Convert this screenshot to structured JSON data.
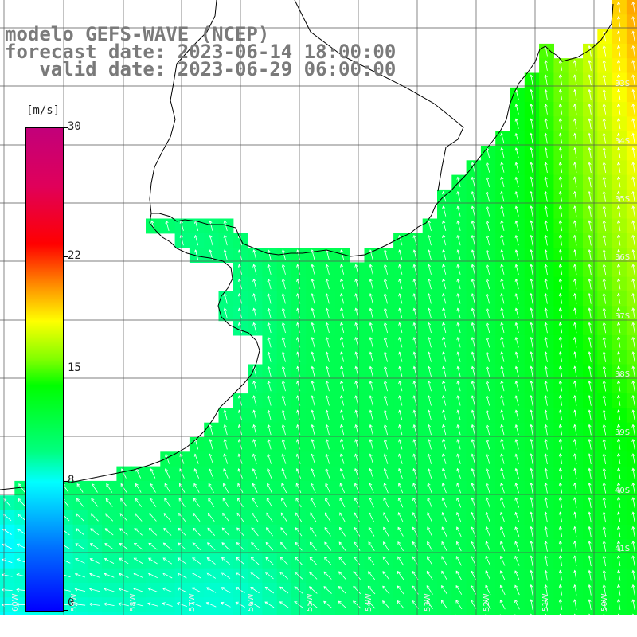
{
  "titles": {
    "model": "modelo GEFS-WAVE (NCEP)",
    "forecast": "forecast date: 2023-06-14 18:00:00",
    "valid": "   valid date: 2023-06-29 06:00:00"
  },
  "colorbar": {
    "units": "[m/s]",
    "ticks": [
      {
        "value": 30,
        "label": "30"
      },
      {
        "value": 22,
        "label": "22"
      },
      {
        "value": 15,
        "label": "15"
      },
      {
        "value": 8,
        "label": "8"
      },
      {
        "value": 0,
        "label": "0"
      }
    ],
    "range": [
      0,
      30
    ]
  },
  "grid": {
    "lat_labels": [
      "33S",
      "34S",
      "35S",
      "36S",
      "37S",
      "38S",
      "39S",
      "40S",
      "41S"
    ],
    "lon_labels": [
      "60W",
      "59W",
      "58W",
      "57W",
      "56W",
      "55W",
      "54W",
      "53W",
      "52W",
      "51W",
      "50W"
    ]
  },
  "colors": {
    "land": "#ffffff",
    "coastline": "#000000",
    "gridline": "#555555",
    "arrow": "#ffffff",
    "title_text": "#7a7a7a"
  },
  "icons": {
    "wind_arrow": "arrow-icon"
  }
}
